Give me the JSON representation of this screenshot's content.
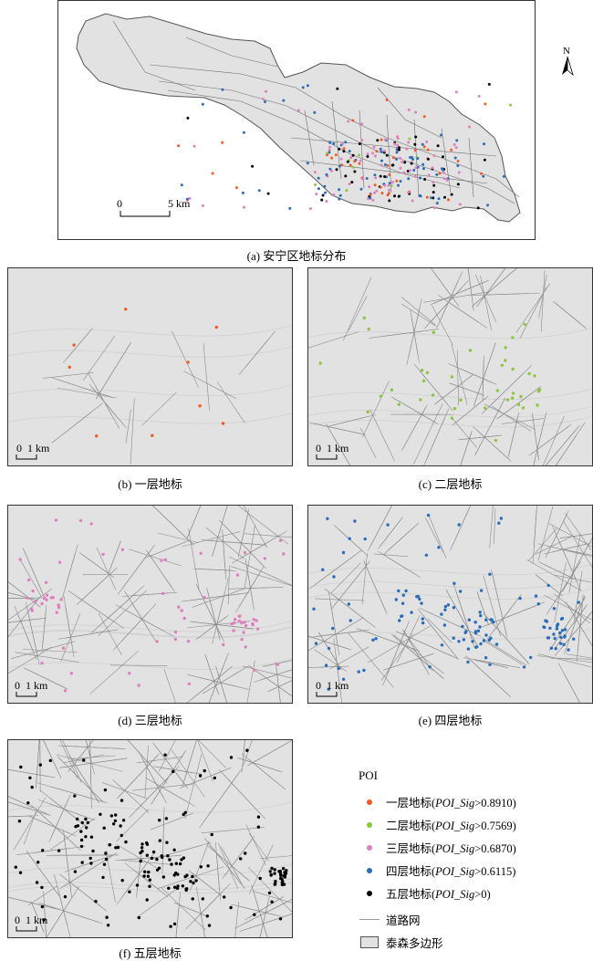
{
  "colors": {
    "layer1": "#f05a24",
    "layer2": "#8cc63f",
    "layer3": "#e07fc0",
    "layer4": "#2b6cb8",
    "layer5": "#000000",
    "road": "#9a9a9a",
    "polygon_fill": "#e2e2e2",
    "polygon_stroke": "#555555"
  },
  "north_arrow": {
    "letter": "N"
  },
  "panels": [
    {
      "id": "a",
      "caption": "(a) 安宁区地标分布",
      "scale_left": "0",
      "scale_right": "5 km"
    },
    {
      "id": "b",
      "caption": "(b) 一层地标",
      "scale_text": "0  1 km"
    },
    {
      "id": "c",
      "caption": "(c) 二层地标",
      "scale_text": "0  1 km"
    },
    {
      "id": "d",
      "caption": "(d) 三层地标",
      "scale_text": "0  1 km"
    },
    {
      "id": "e",
      "caption": "(e) 四层地标",
      "scale_text": "0  1 km"
    },
    {
      "id": "f",
      "caption": "(f) 五层地标",
      "scale_text": "0  1 km"
    }
  ],
  "legend": {
    "title": "POI",
    "items": [
      {
        "label": "一层地标(",
        "metric": "POI_Sig",
        "threshold": ">0.8910)",
        "icon": "orange-dot-icon"
      },
      {
        "label": "二层地标(",
        "metric": "POI_Sig",
        "threshold": ">0.7569)",
        "icon": "green-dot-icon"
      },
      {
        "label": "三层地标(",
        "metric": "POI_Sig",
        "threshold": ">0.6870)",
        "icon": "pink-dot-icon"
      },
      {
        "label": "四层地标(",
        "metric": "POI_Sig",
        "threshold": ">0.6115)",
        "icon": "blue-dot-icon"
      },
      {
        "label": "五层地标(",
        "metric": "POI_Sig",
        "threshold": ">0)",
        "icon": "black-dot-icon"
      }
    ],
    "road_label": "道路网",
    "polygon_label": "泰森多边形"
  }
}
